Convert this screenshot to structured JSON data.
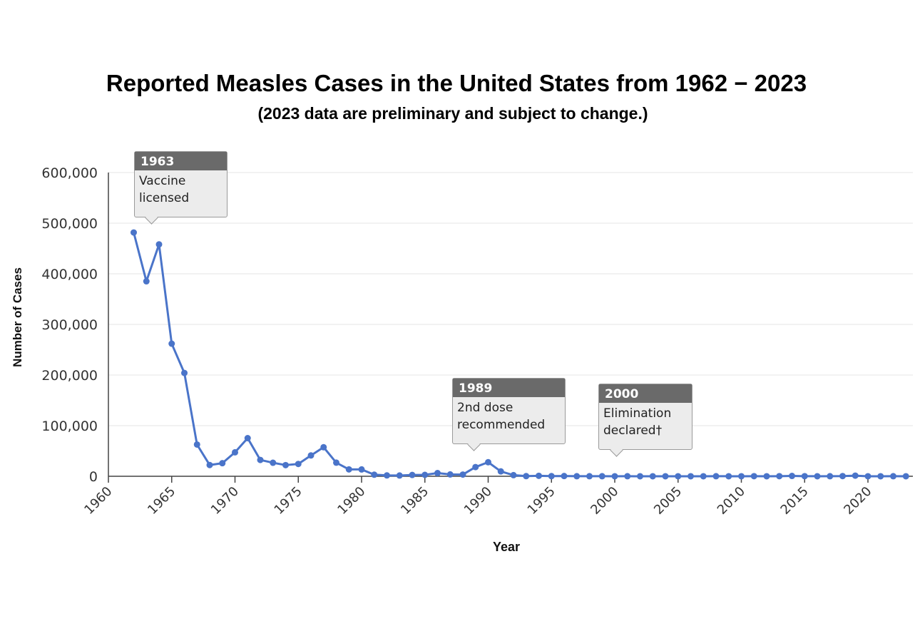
{
  "chart_data": {
    "type": "line",
    "title": "Reported Measles Cases in the United States from 1962 − 2023",
    "subtitle": "(2023 data are preliminary and subject to change.)",
    "xlabel": "Year",
    "ylabel": "Number of Cases",
    "xlim": [
      1960,
      2023
    ],
    "ylim": [
      0,
      600000
    ],
    "x_ticks": [
      "1960",
      "1965",
      "1970",
      "1975",
      "1980",
      "1985",
      "1990",
      "1995",
      "2000",
      "2005",
      "2010",
      "2015",
      "2020"
    ],
    "y_ticks": [
      "0",
      "100,000",
      "200,000",
      "300,000",
      "400,000",
      "500,000",
      "600,000"
    ],
    "grid": true,
    "color": "#4a74c9",
    "x": [
      1962,
      1963,
      1964,
      1965,
      1966,
      1967,
      1968,
      1969,
      1970,
      1971,
      1972,
      1973,
      1974,
      1975,
      1976,
      1977,
      1978,
      1979,
      1980,
      1981,
      1982,
      1983,
      1984,
      1985,
      1986,
      1987,
      1988,
      1989,
      1990,
      1991,
      1992,
      1993,
      1994,
      1995,
      1996,
      1997,
      1998,
      1999,
      2000,
      2001,
      2002,
      2003,
      2004,
      2005,
      2006,
      2007,
      2008,
      2009,
      2010,
      2011,
      2012,
      2013,
      2014,
      2015,
      2016,
      2017,
      2018,
      2019,
      2020,
      2021,
      2022,
      2023
    ],
    "values": [
      481530,
      385156,
      458083,
      261904,
      204136,
      62705,
      22231,
      25826,
      47351,
      75290,
      32275,
      26690,
      22094,
      24374,
      41126,
      57345,
      26871,
      13597,
      13506,
      3124,
      1714,
      1497,
      2587,
      2822,
      6282,
      3655,
      3396,
      18193,
      27786,
      9643,
      2237,
      312,
      963,
      309,
      508,
      138,
      100,
      100,
      86,
      116,
      44,
      56,
      37,
      66,
      55,
      43,
      140,
      71,
      63,
      220,
      55,
      187,
      667,
      188,
      86,
      120,
      375,
      1274,
      13,
      49,
      121,
      59
    ],
    "annotations": [
      {
        "year": "1963",
        "text": "Vaccine licensed",
        "line1": "Vaccine",
        "line2": "licensed"
      },
      {
        "year": "1989",
        "text": "2nd dose recommended",
        "line1": "2nd dose",
        "line2": "recommended"
      },
      {
        "year": "2000",
        "text": "Elimination declared†",
        "line1": "Elimination",
        "line2": "declared†"
      }
    ]
  }
}
